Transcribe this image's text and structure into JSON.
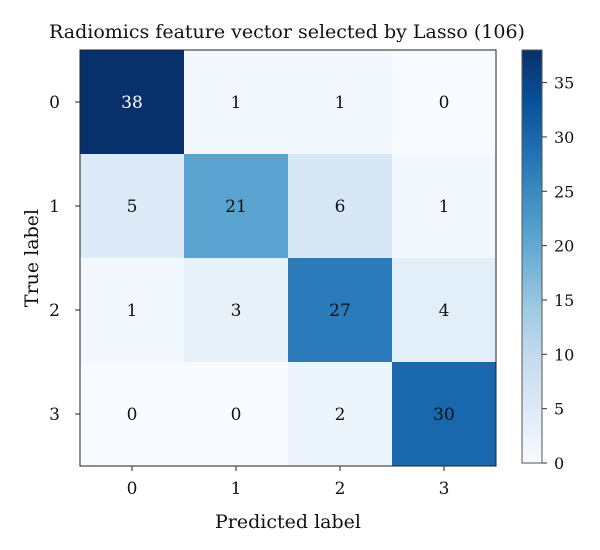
{
  "chart_data": {
    "type": "heatmap",
    "title": "Radiomics feature vector selected by Lasso (106)",
    "xlabel": "Predicted label",
    "ylabel": "True label",
    "x_categories": [
      "0",
      "1",
      "2",
      "3"
    ],
    "y_categories": [
      "0",
      "1",
      "2",
      "3"
    ],
    "values": [
      [
        38,
        1,
        1,
        0
      ],
      [
        5,
        21,
        6,
        1
      ],
      [
        1,
        3,
        27,
        4
      ],
      [
        0,
        0,
        2,
        30
      ]
    ],
    "colormap": "Blues",
    "colorbar": {
      "range": [
        0,
        38
      ],
      "ticks": [
        0,
        5,
        10,
        15,
        20,
        25,
        30,
        35
      ],
      "tick_labels": [
        "0",
        "5",
        "10",
        "15",
        "20",
        "25",
        "30",
        "35"
      ]
    },
    "grid": false
  }
}
